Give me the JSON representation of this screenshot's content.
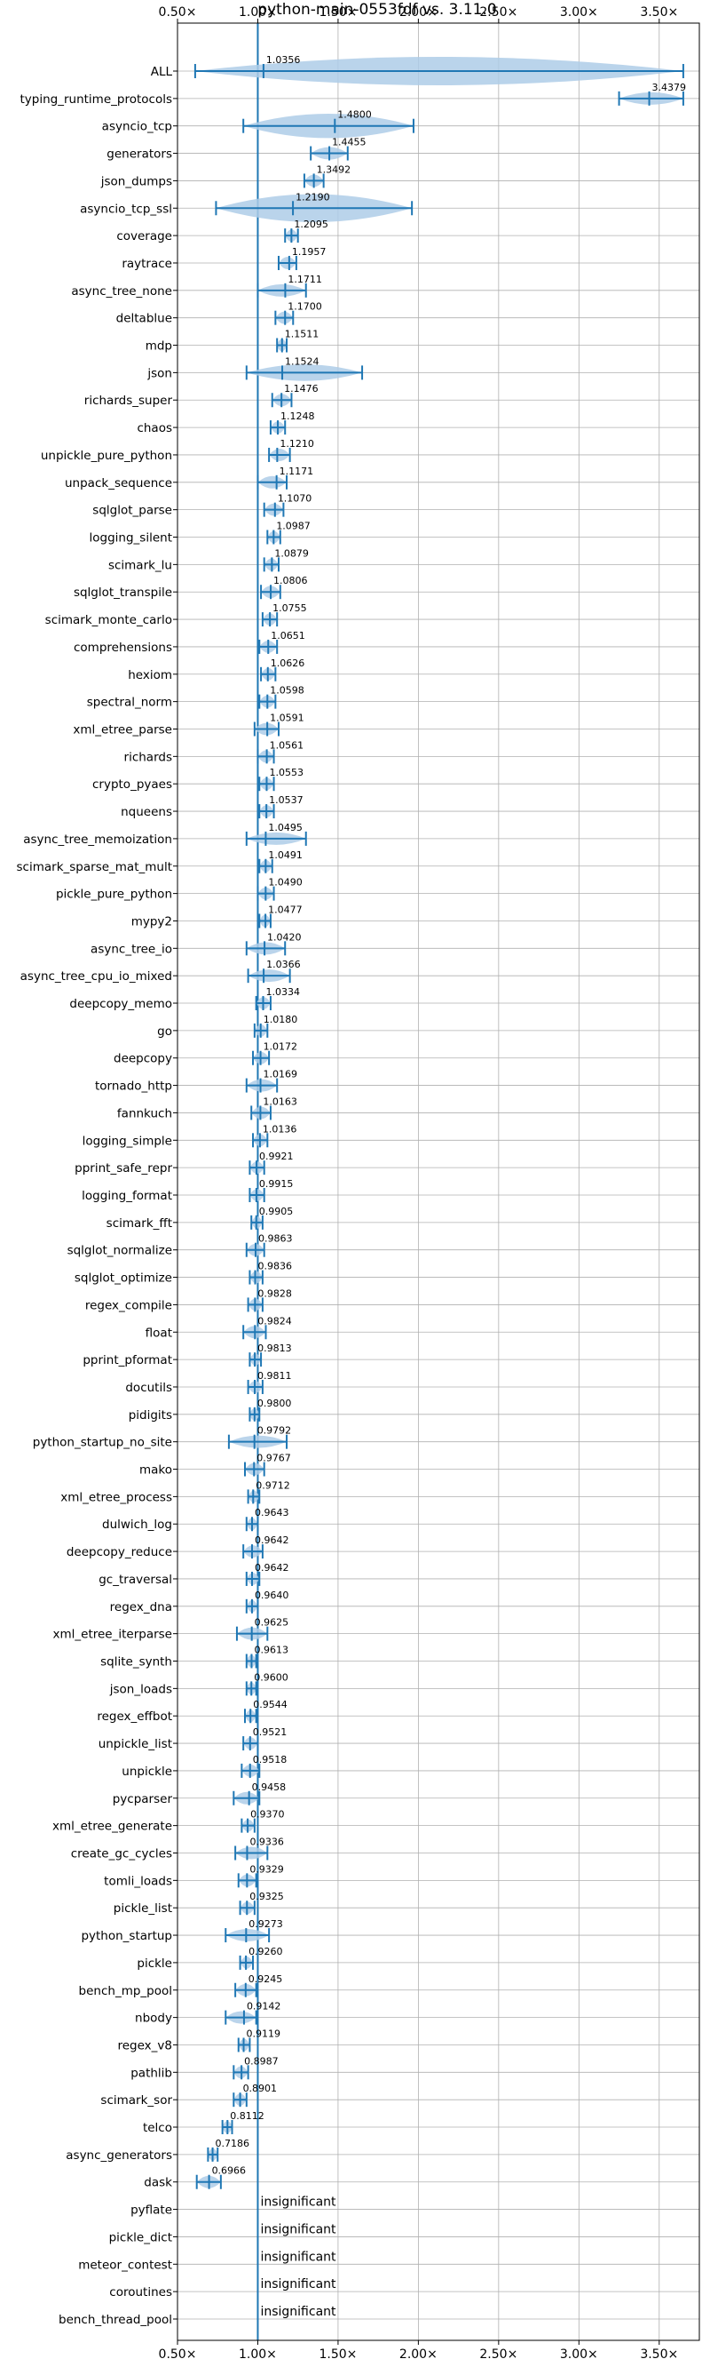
{
  "chart_data": {
    "type": "violin",
    "title": "python-main-0553fdf vs. 3.11.0",
    "xlim": [
      0.5,
      3.75
    ],
    "x_ticks": [
      0.5,
      1.0,
      1.5,
      2.0,
      2.5,
      3.0,
      3.5
    ],
    "x_tick_labels": [
      "0.50×",
      "1.00×",
      "1.50×",
      "2.00×",
      "2.50×",
      "3.00×",
      "3.50×"
    ],
    "reference_x": 1.0,
    "grid": true,
    "colors": {
      "violin_fill": "#aecde8",
      "line": "#1f77b4",
      "reference": "#1f77b4"
    },
    "benchmarks": [
      {
        "name": "ALL",
        "value": 1.0356,
        "label": "1.0356",
        "min": 0.61,
        "max": 3.65
      },
      {
        "name": "typing_runtime_protocols",
        "value": 3.4379,
        "label": "3.4379",
        "min": 3.25,
        "max": 3.65
      },
      {
        "name": "asyncio_tcp",
        "value": 1.48,
        "label": "1.4800",
        "min": 0.91,
        "max": 1.97
      },
      {
        "name": "generators",
        "value": 1.4455,
        "label": "1.4455",
        "min": 1.33,
        "max": 1.56
      },
      {
        "name": "json_dumps",
        "value": 1.3492,
        "label": "1.3492",
        "min": 1.29,
        "max": 1.41
      },
      {
        "name": "asyncio_tcp_ssl",
        "value": 1.219,
        "label": "1.2190",
        "min": 0.74,
        "max": 1.96
      },
      {
        "name": "coverage",
        "value": 1.2095,
        "label": "1.2095",
        "min": 1.17,
        "max": 1.25
      },
      {
        "name": "raytrace",
        "value": 1.1957,
        "label": "1.1957",
        "min": 1.13,
        "max": 1.24
      },
      {
        "name": "async_tree_none",
        "value": 1.1711,
        "label": "1.1711",
        "min": 1.0,
        "max": 1.3
      },
      {
        "name": "deltablue",
        "value": 1.17,
        "label": "1.1700",
        "min": 1.11,
        "max": 1.22
      },
      {
        "name": "mdp",
        "value": 1.1511,
        "label": "1.1511",
        "min": 1.12,
        "max": 1.18
      },
      {
        "name": "json",
        "value": 1.1524,
        "label": "1.1524",
        "min": 0.93,
        "max": 1.65
      },
      {
        "name": "richards_super",
        "value": 1.1476,
        "label": "1.1476",
        "min": 1.09,
        "max": 1.21
      },
      {
        "name": "chaos",
        "value": 1.1248,
        "label": "1.1248",
        "min": 1.08,
        "max": 1.17
      },
      {
        "name": "unpickle_pure_python",
        "value": 1.121,
        "label": "1.1210",
        "min": 1.07,
        "max": 1.2
      },
      {
        "name": "unpack_sequence",
        "value": 1.1171,
        "label": "1.1171",
        "min": 1.0,
        "max": 1.18
      },
      {
        "name": "sqlglot_parse",
        "value": 1.107,
        "label": "1.1070",
        "min": 1.04,
        "max": 1.16
      },
      {
        "name": "logging_silent",
        "value": 1.0987,
        "label": "1.0987",
        "min": 1.06,
        "max": 1.14
      },
      {
        "name": "scimark_lu",
        "value": 1.0879,
        "label": "1.0879",
        "min": 1.04,
        "max": 1.13
      },
      {
        "name": "sqlglot_transpile",
        "value": 1.0806,
        "label": "1.0806",
        "min": 1.02,
        "max": 1.14
      },
      {
        "name": "scimark_monte_carlo",
        "value": 1.0755,
        "label": "1.0755",
        "min": 1.03,
        "max": 1.12
      },
      {
        "name": "comprehensions",
        "value": 1.0651,
        "label": "1.0651",
        "min": 1.01,
        "max": 1.12
      },
      {
        "name": "hexiom",
        "value": 1.0626,
        "label": "1.0626",
        "min": 1.02,
        "max": 1.11
      },
      {
        "name": "spectral_norm",
        "value": 1.0598,
        "label": "1.0598",
        "min": 1.01,
        "max": 1.11
      },
      {
        "name": "xml_etree_parse",
        "value": 1.0591,
        "label": "1.0591",
        "min": 0.98,
        "max": 1.13
      },
      {
        "name": "richards",
        "value": 1.0561,
        "label": "1.0561",
        "min": 1.0,
        "max": 1.1
      },
      {
        "name": "crypto_pyaes",
        "value": 1.0553,
        "label": "1.0553",
        "min": 1.01,
        "max": 1.1
      },
      {
        "name": "nqueens",
        "value": 1.0537,
        "label": "1.0537",
        "min": 1.01,
        "max": 1.1
      },
      {
        "name": "async_tree_memoization",
        "value": 1.0495,
        "label": "1.0495",
        "min": 0.93,
        "max": 1.3
      },
      {
        "name": "scimark_sparse_mat_mult",
        "value": 1.0491,
        "label": "1.0491",
        "min": 1.01,
        "max": 1.09
      },
      {
        "name": "pickle_pure_python",
        "value": 1.049,
        "label": "1.0490",
        "min": 1.0,
        "max": 1.1
      },
      {
        "name": "mypy2",
        "value": 1.0477,
        "label": "1.0477",
        "min": 1.01,
        "max": 1.08
      },
      {
        "name": "async_tree_io",
        "value": 1.042,
        "label": "1.0420",
        "min": 0.93,
        "max": 1.17
      },
      {
        "name": "async_tree_cpu_io_mixed",
        "value": 1.0366,
        "label": "1.0366",
        "min": 0.94,
        "max": 1.2
      },
      {
        "name": "deepcopy_memo",
        "value": 1.0334,
        "label": "1.0334",
        "min": 0.99,
        "max": 1.08
      },
      {
        "name": "go",
        "value": 1.018,
        "label": "1.0180",
        "min": 0.98,
        "max": 1.06
      },
      {
        "name": "deepcopy",
        "value": 1.0172,
        "label": "1.0172",
        "min": 0.97,
        "max": 1.07
      },
      {
        "name": "tornado_http",
        "value": 1.0169,
        "label": "1.0169",
        "min": 0.93,
        "max": 1.12
      },
      {
        "name": "fannkuch",
        "value": 1.0163,
        "label": "1.0163",
        "min": 0.96,
        "max": 1.08
      },
      {
        "name": "logging_simple",
        "value": 1.0136,
        "label": "1.0136",
        "min": 0.97,
        "max": 1.06
      },
      {
        "name": "pprint_safe_repr",
        "value": 0.9921,
        "label": "0.9921",
        "min": 0.95,
        "max": 1.04
      },
      {
        "name": "logging_format",
        "value": 0.9915,
        "label": "0.9915",
        "min": 0.95,
        "max": 1.04
      },
      {
        "name": "scimark_fft",
        "value": 0.9905,
        "label": "0.9905",
        "min": 0.96,
        "max": 1.03
      },
      {
        "name": "sqlglot_normalize",
        "value": 0.9863,
        "label": "0.9863",
        "min": 0.93,
        "max": 1.04
      },
      {
        "name": "sqlglot_optimize",
        "value": 0.9836,
        "label": "0.9836",
        "min": 0.95,
        "max": 1.03
      },
      {
        "name": "regex_compile",
        "value": 0.9828,
        "label": "0.9828",
        "min": 0.94,
        "max": 1.03
      },
      {
        "name": "float",
        "value": 0.9824,
        "label": "0.9824",
        "min": 0.91,
        "max": 1.05
      },
      {
        "name": "pprint_pformat",
        "value": 0.9813,
        "label": "0.9813",
        "min": 0.95,
        "max": 1.02
      },
      {
        "name": "docutils",
        "value": 0.9811,
        "label": "0.9811",
        "min": 0.94,
        "max": 1.03
      },
      {
        "name": "pidigits",
        "value": 0.98,
        "label": "0.9800",
        "min": 0.95,
        "max": 1.01
      },
      {
        "name": "python_startup_no_site",
        "value": 0.9792,
        "label": "0.9792",
        "min": 0.82,
        "max": 1.18
      },
      {
        "name": "mako",
        "value": 0.9767,
        "label": "0.9767",
        "min": 0.92,
        "max": 1.04
      },
      {
        "name": "xml_etree_process",
        "value": 0.9712,
        "label": "0.9712",
        "min": 0.94,
        "max": 1.01
      },
      {
        "name": "dulwich_log",
        "value": 0.9643,
        "label": "0.9643",
        "min": 0.93,
        "max": 1.0
      },
      {
        "name": "deepcopy_reduce",
        "value": 0.9642,
        "label": "0.9642",
        "min": 0.91,
        "max": 1.03
      },
      {
        "name": "gc_traversal",
        "value": 0.9642,
        "label": "0.9642",
        "min": 0.93,
        "max": 1.01
      },
      {
        "name": "regex_dna",
        "value": 0.964,
        "label": "0.9640",
        "min": 0.93,
        "max": 1.0
      },
      {
        "name": "xml_etree_iterparse",
        "value": 0.9625,
        "label": "0.9625",
        "min": 0.87,
        "max": 1.06
      },
      {
        "name": "sqlite_synth",
        "value": 0.9613,
        "label": "0.9613",
        "min": 0.93,
        "max": 0.99
      },
      {
        "name": "json_loads",
        "value": 0.96,
        "label": "0.9600",
        "min": 0.93,
        "max": 0.99
      },
      {
        "name": "regex_effbot",
        "value": 0.9544,
        "label": "0.9544",
        "min": 0.92,
        "max": 0.99
      },
      {
        "name": "unpickle_list",
        "value": 0.9521,
        "label": "0.9521",
        "min": 0.91,
        "max": 1.0
      },
      {
        "name": "unpickle",
        "value": 0.9518,
        "label": "0.9518",
        "min": 0.9,
        "max": 1.01
      },
      {
        "name": "pycparser",
        "value": 0.9458,
        "label": "0.9458",
        "min": 0.85,
        "max": 1.01
      },
      {
        "name": "xml_etree_generate",
        "value": 0.937,
        "label": "0.9370",
        "min": 0.9,
        "max": 0.98
      },
      {
        "name": "create_gc_cycles",
        "value": 0.9336,
        "label": "0.9336",
        "min": 0.86,
        "max": 1.06
      },
      {
        "name": "tomli_loads",
        "value": 0.9329,
        "label": "0.9329",
        "min": 0.88,
        "max": 0.99
      },
      {
        "name": "pickle_list",
        "value": 0.9325,
        "label": "0.9325",
        "min": 0.89,
        "max": 0.98
      },
      {
        "name": "python_startup",
        "value": 0.9273,
        "label": "0.9273",
        "min": 0.8,
        "max": 1.07
      },
      {
        "name": "pickle",
        "value": 0.926,
        "label": "0.9260",
        "min": 0.89,
        "max": 0.97
      },
      {
        "name": "bench_mp_pool",
        "value": 0.9245,
        "label": "0.9245",
        "min": 0.86,
        "max": 0.99
      },
      {
        "name": "nbody",
        "value": 0.9142,
        "label": "0.9142",
        "min": 0.8,
        "max": 0.99
      },
      {
        "name": "regex_v8",
        "value": 0.9119,
        "label": "0.9119",
        "min": 0.88,
        "max": 0.95
      },
      {
        "name": "pathlib",
        "value": 0.8987,
        "label": "0.8987",
        "min": 0.85,
        "max": 0.94
      },
      {
        "name": "scimark_sor",
        "value": 0.8901,
        "label": "0.8901",
        "min": 0.85,
        "max": 0.93
      },
      {
        "name": "telco",
        "value": 0.8112,
        "label": "0.8112",
        "min": 0.78,
        "max": 0.84
      },
      {
        "name": "async_generators",
        "value": 0.7186,
        "label": "0.7186",
        "min": 0.69,
        "max": 0.75
      },
      {
        "name": "dask",
        "value": 0.6966,
        "label": "0.6966",
        "min": 0.62,
        "max": 0.77
      },
      {
        "name": "pyflate",
        "value": null,
        "label": "insignificant"
      },
      {
        "name": "pickle_dict",
        "value": null,
        "label": "insignificant"
      },
      {
        "name": "meteor_contest",
        "value": null,
        "label": "insignificant"
      },
      {
        "name": "coroutines",
        "value": null,
        "label": "insignificant"
      },
      {
        "name": "bench_thread_pool",
        "value": null,
        "label": "insignificant"
      }
    ]
  }
}
